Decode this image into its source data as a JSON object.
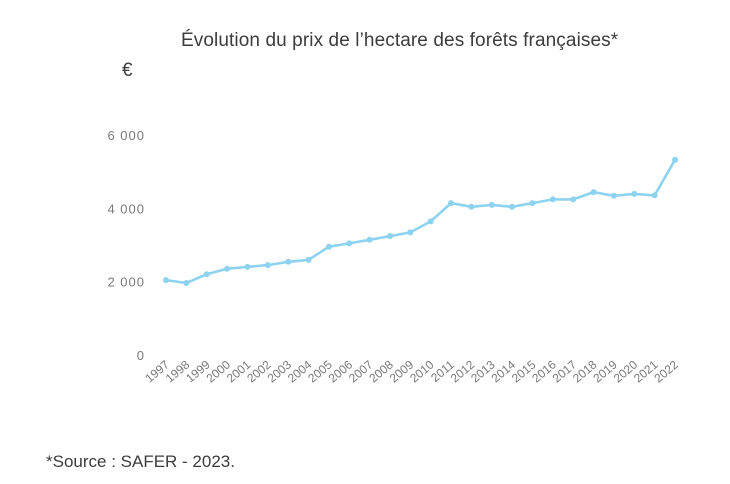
{
  "title": "Évolution du prix de l’hectare des forêts françaises*",
  "unit_label": "€",
  "source": "*Source : SAFER - 2023.",
  "colors": {
    "line": "#8dd3ef",
    "text": "#3c3c3c",
    "tick": "#7a7a7a"
  },
  "chart_data": {
    "type": "line",
    "categories": [
      "1997",
      "1998",
      "1999",
      "2000",
      "2001",
      "2002",
      "2003",
      "2004",
      "2005",
      "2006",
      "2007",
      "2008",
      "2009",
      "2010",
      "2011",
      "2012",
      "2013",
      "2014",
      "2015",
      "2016",
      "2017",
      "2018",
      "2019",
      "2020",
      "2021",
      "2022"
    ],
    "series": [
      {
        "values": [
          2070,
          1990,
          2230,
          2380,
          2430,
          2480,
          2570,
          2620,
          2980,
          3070,
          3170,
          3270,
          3370,
          3670,
          4170,
          4070,
          4120,
          4070,
          4170,
          4270,
          4270,
          4470,
          4370,
          4420,
          4380,
          5350
        ]
      }
    ],
    "yticks": [
      0,
      2000,
      4000,
      6000
    ],
    "ytick_labels": [
      "0",
      "2 000",
      "4 000",
      "6 000"
    ],
    "ylim": [
      0,
      6000
    ],
    "grid": false,
    "xlabel": "",
    "ylabel": ""
  }
}
